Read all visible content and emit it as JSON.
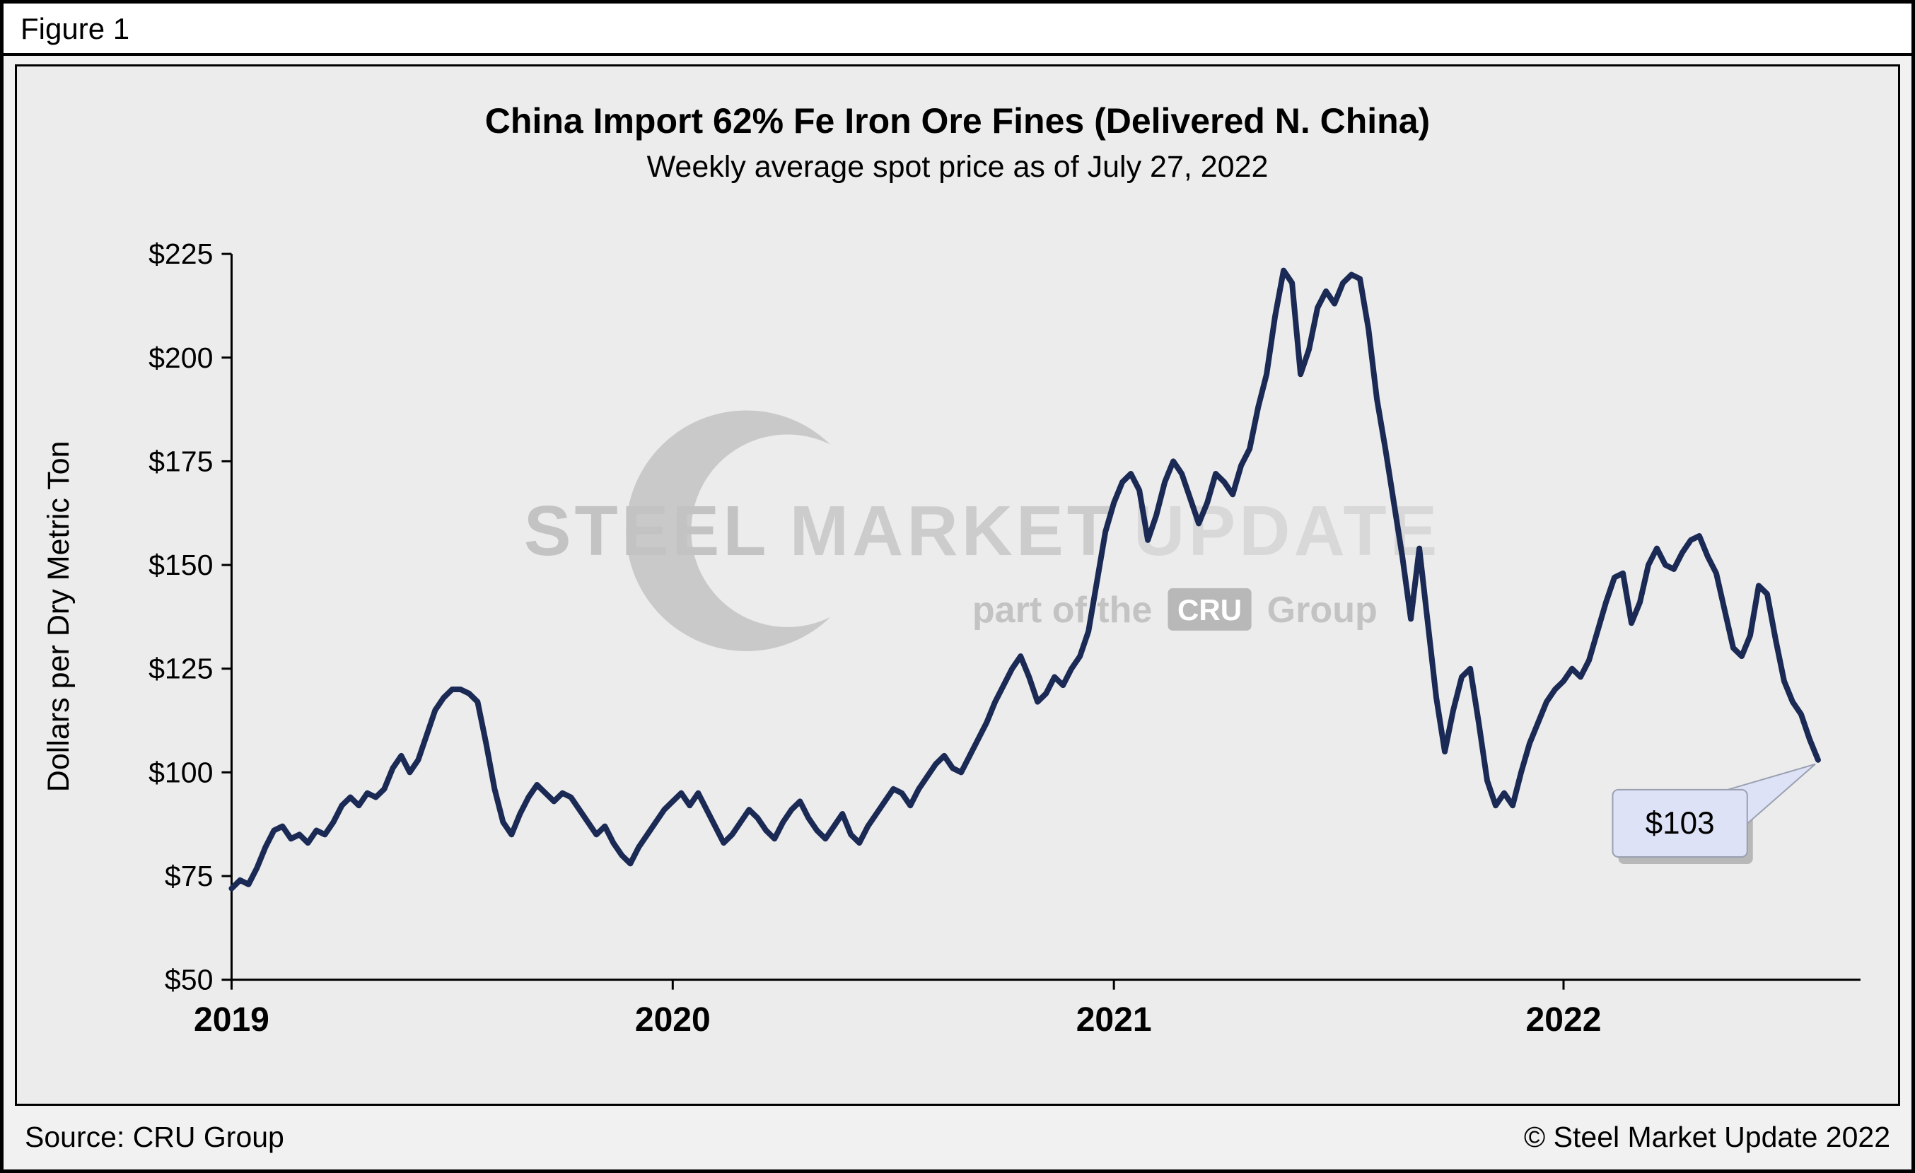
{
  "figure_label": "Figure 1",
  "chart_data": {
    "type": "line",
    "title": "China Import 62% Fe Iron Ore Fines (Delivered N. China)",
    "subtitle": "Weekly average spot price as of July 27, 2022",
    "ylabel": "Dollars per Dry Metric Ton",
    "ylim": [
      50,
      225
    ],
    "y_ticks": [
      50,
      75,
      100,
      125,
      150,
      175,
      200,
      225
    ],
    "y_tick_prefix": "$",
    "x_tick_labels": [
      "2019",
      "2020",
      "2021",
      "2022"
    ],
    "x_tick_weeks": [
      0,
      52,
      104,
      157
    ],
    "x_domain": [
      0,
      192
    ],
    "grid": "off",
    "line_color": "#1b2a55",
    "last_label": "$103",
    "last_value": 103,
    "callout_fill": "#dee2f6",
    "callout_border": "#9aa0b0",
    "values": [
      72,
      74,
      73,
      77,
      82,
      86,
      87,
      84,
      85,
      83,
      86,
      85,
      88,
      92,
      94,
      92,
      95,
      94,
      96,
      101,
      104,
      100,
      103,
      109,
      115,
      118,
      120,
      120,
      119,
      117,
      107,
      96,
      88,
      85,
      90,
      94,
      97,
      95,
      93,
      95,
      94,
      91,
      88,
      85,
      87,
      83,
      80,
      78,
      82,
      85,
      88,
      91,
      93,
      95,
      92,
      95,
      91,
      87,
      83,
      85,
      88,
      91,
      89,
      86,
      84,
      88,
      91,
      93,
      89,
      86,
      84,
      87,
      90,
      85,
      83,
      87,
      90,
      93,
      96,
      95,
      92,
      96,
      99,
      102,
      104,
      101,
      100,
      104,
      108,
      112,
      117,
      121,
      125,
      128,
      123,
      117,
      119,
      123,
      121,
      125,
      128,
      134,
      146,
      158,
      165,
      170,
      172,
      168,
      156,
      162,
      170,
      175,
      172,
      166,
      160,
      165,
      172,
      170,
      167,
      174,
      178,
      188,
      196,
      210,
      221,
      218,
      196,
      202,
      212,
      216,
      213,
      218,
      220,
      219,
      207,
      190,
      178,
      165,
      152,
      137,
      154,
      136,
      118,
      105,
      115,
      123,
      125,
      112,
      98,
      92,
      95,
      92,
      100,
      107,
      112,
      117,
      120,
      122,
      125,
      123,
      127,
      134,
      141,
      147,
      148,
      136,
      141,
      150,
      154,
      150,
      149,
      153,
      156,
      157,
      152,
      148,
      139,
      130,
      128,
      133,
      145,
      143,
      132,
      122,
      117,
      114,
      108,
      103
    ]
  },
  "watermark": {
    "steel": "STEEL",
    "market": "MARKET",
    "update": "UPDATE",
    "part": "part of the",
    "cru": "CRU",
    "group": "Group",
    "gray_dark": "#c3c3c3",
    "gray_light": "#d6d6d6"
  },
  "footer": {
    "source": "Source: CRU Group",
    "copyright": "© Steel Market Update 2022"
  }
}
